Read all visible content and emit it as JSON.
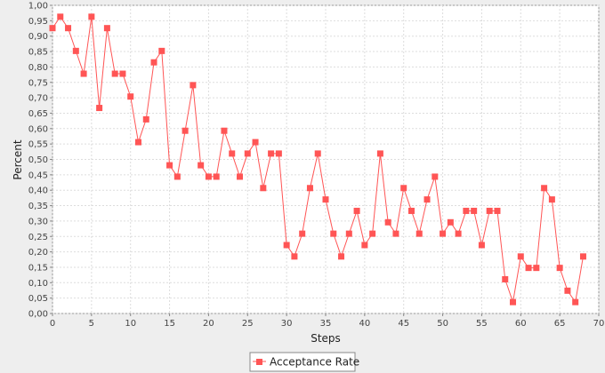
{
  "chart_data": {
    "type": "line",
    "xlabel": "Steps",
    "ylabel": "Percent",
    "xlim": [
      0,
      70
    ],
    "ylim": [
      0,
      1.0
    ],
    "x_ticks": [
      "0",
      "5",
      "10",
      "15",
      "20",
      "25",
      "30",
      "35",
      "40",
      "45",
      "50",
      "55",
      "60",
      "65",
      "70"
    ],
    "y_ticks": [
      "0,00",
      "0,05",
      "0,10",
      "0,15",
      "0,20",
      "0,25",
      "0,30",
      "0,35",
      "0,40",
      "0,45",
      "0,50",
      "0,55",
      "0,60",
      "0,65",
      "0,70",
      "0,75",
      "0,80",
      "0,85",
      "0,90",
      "0,95",
      "1,00"
    ],
    "grid": true,
    "legend_position": "bottom-center",
    "series": [
      {
        "name": "Acceptance Rate",
        "color": "#ff5555",
        "marker": "square",
        "x": [
          0,
          1,
          2,
          3,
          4,
          5,
          6,
          7,
          8,
          9,
          10,
          11,
          12,
          13,
          14,
          15,
          16,
          17,
          18,
          19,
          20,
          21,
          22,
          23,
          24,
          25,
          26,
          27,
          28,
          29,
          30,
          31,
          32,
          33,
          34,
          35,
          36,
          37,
          38,
          39,
          40,
          41,
          42,
          43,
          44,
          45,
          46,
          47,
          48,
          49,
          50,
          51,
          52,
          53,
          54,
          55,
          56,
          57,
          58,
          59,
          60,
          61,
          62,
          63,
          64,
          65,
          66,
          67,
          68
        ],
        "values": [
          0.926,
          0.963,
          0.926,
          0.852,
          0.778,
          0.963,
          0.667,
          0.926,
          0.778,
          0.778,
          0.704,
          0.556,
          0.63,
          0.815,
          0.852,
          0.481,
          0.444,
          0.593,
          0.741,
          0.481,
          0.444,
          0.444,
          0.593,
          0.519,
          0.444,
          0.519,
          0.556,
          0.407,
          0.519,
          0.519,
          0.222,
          0.185,
          0.259,
          0.407,
          0.519,
          0.37,
          0.259,
          0.185,
          0.259,
          0.333,
          0.222,
          0.259,
          0.519,
          0.296,
          0.259,
          0.407,
          0.333,
          0.259,
          0.37,
          0.444,
          0.259,
          0.296,
          0.259,
          0.333,
          0.333,
          0.222,
          0.333,
          0.333,
          0.111,
          0.037,
          0.185,
          0.148,
          0.148,
          0.407,
          0.37,
          0.148,
          0.074,
          0.037,
          0.185
        ]
      }
    ]
  }
}
